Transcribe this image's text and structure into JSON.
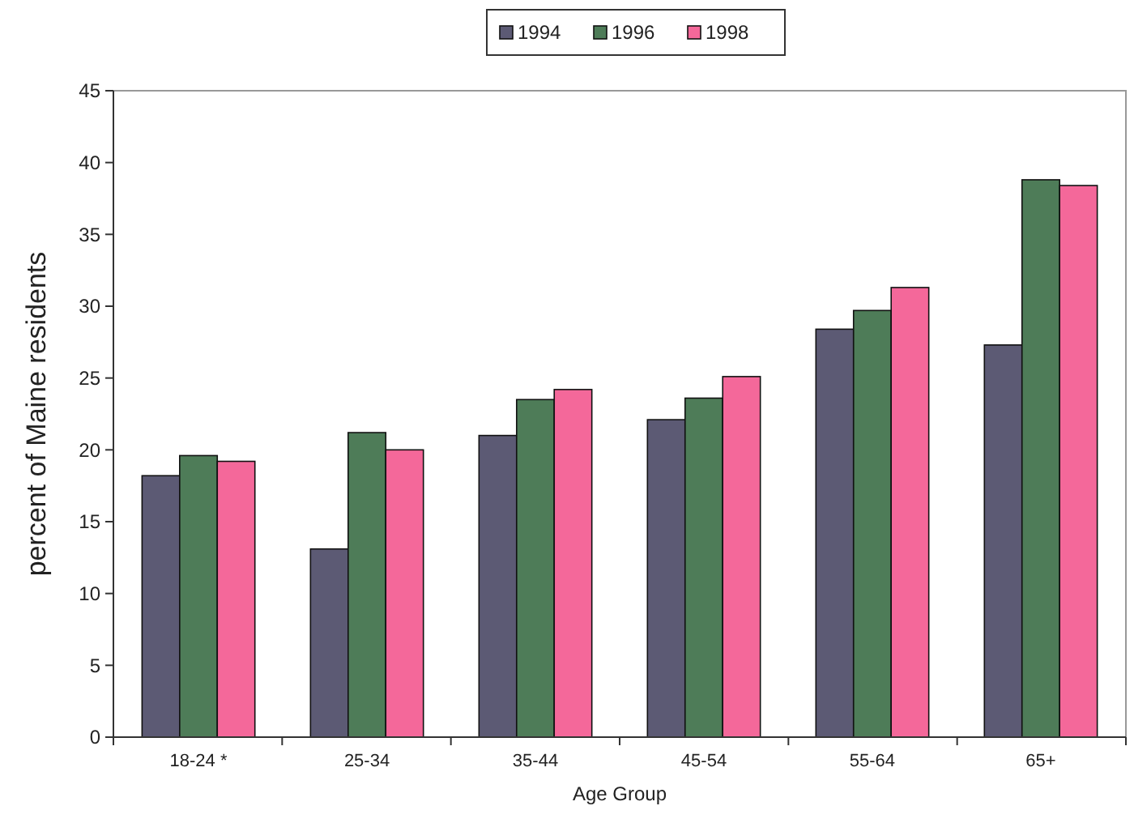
{
  "chart_data": {
    "type": "bar",
    "xlabel": "Age Group",
    "ylabel": "percent of Maine residents",
    "categories": [
      "18-24 *",
      "25-34",
      "35-44",
      "45-54",
      "55-64",
      "65+"
    ],
    "series": [
      {
        "name": "1994",
        "color": "#5c5a74",
        "values": [
          18.2,
          13.1,
          21.0,
          22.1,
          28.4,
          27.3
        ]
      },
      {
        "name": "1996",
        "color": "#4e7c58",
        "values": [
          19.6,
          21.2,
          23.5,
          23.6,
          29.7,
          38.8
        ]
      },
      {
        "name": "1998",
        "color": "#f4689a",
        "values": [
          19.2,
          20.0,
          24.2,
          25.1,
          31.3,
          38.4
        ]
      }
    ],
    "ylim": [
      0,
      45
    ],
    "yticks": [
      0,
      5,
      10,
      15,
      20,
      25,
      30,
      35,
      40,
      45
    ],
    "grid": false,
    "legend": "top"
  }
}
